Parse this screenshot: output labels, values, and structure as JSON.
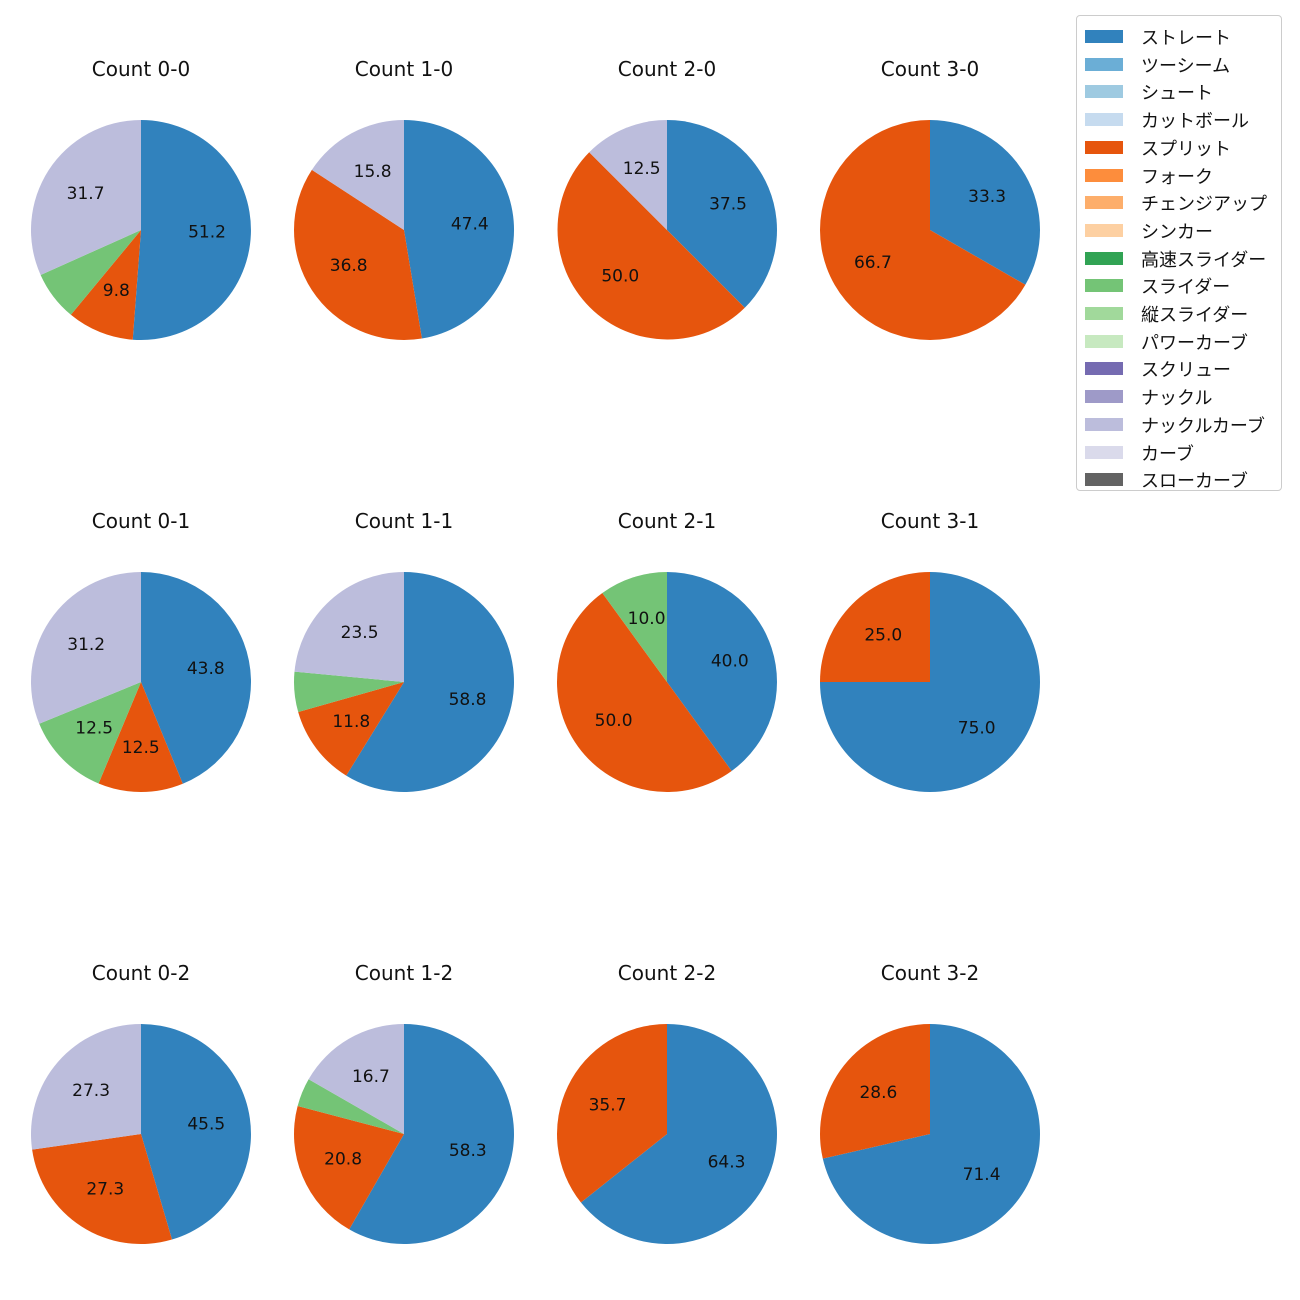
{
  "chart_data": {
    "type": "pie",
    "layout": "grid",
    "categories": [
      "ストレート",
      "ツーシーム",
      "シュート",
      "カットボール",
      "スプリット",
      "フォーク",
      "チェンジアップ",
      "シンカー",
      "高速スライダー",
      "スライダー",
      "縦スライダー",
      "パワーカーブ",
      "スクリュー",
      "ナックル",
      "ナックルカーブ",
      "カーブ",
      "スローカーブ"
    ],
    "colors": [
      "#3182bd",
      "#6baed6",
      "#9ecae1",
      "#c6dbef",
      "#e6550d",
      "#fd8d3c",
      "#fdae6b",
      "#fdd0a2",
      "#31a354",
      "#74c476",
      "#a1d99b",
      "#c7e9c0",
      "#756bb1",
      "#9e9ac8",
      "#bcbddc",
      "#dadaeb",
      "#636363"
    ],
    "legend_position": "top-right",
    "start_angle": "12 o'clock, clockwise",
    "charts": [
      {
        "title": "Count 0-0",
        "slices": [
          {
            "category": "ストレート",
            "value": 51.2,
            "label": "51.2"
          },
          {
            "category": "スプリット",
            "value": 9.8,
            "label": "9.8"
          },
          {
            "category": "スライダー",
            "value": 7.3,
            "label": ""
          },
          {
            "category": "ナックルカーブ",
            "value": 31.7,
            "label": "31.7"
          }
        ]
      },
      {
        "title": "Count 1-0",
        "slices": [
          {
            "category": "ストレート",
            "value": 47.4,
            "label": "47.4"
          },
          {
            "category": "スプリット",
            "value": 36.8,
            "label": "36.8"
          },
          {
            "category": "ナックルカーブ",
            "value": 15.8,
            "label": "15.8"
          }
        ]
      },
      {
        "title": "Count 2-0",
        "slices": [
          {
            "category": "ストレート",
            "value": 37.5,
            "label": "37.5"
          },
          {
            "category": "スプリット",
            "value": 50.0,
            "label": "50.0"
          },
          {
            "category": "ナックルカーブ",
            "value": 12.5,
            "label": "12.5"
          }
        ]
      },
      {
        "title": "Count 3-0",
        "slices": [
          {
            "category": "ストレート",
            "value": 33.3,
            "label": "33.3"
          },
          {
            "category": "スプリット",
            "value": 66.7,
            "label": "66.7"
          }
        ]
      },
      {
        "title": "Count 0-1",
        "slices": [
          {
            "category": "ストレート",
            "value": 43.8,
            "label": "43.8"
          },
          {
            "category": "スプリット",
            "value": 12.5,
            "label": "12.5"
          },
          {
            "category": "スライダー",
            "value": 12.5,
            "label": "12.5"
          },
          {
            "category": "ナックルカーブ",
            "value": 31.2,
            "label": "31.2"
          }
        ]
      },
      {
        "title": "Count 1-1",
        "slices": [
          {
            "category": "ストレート",
            "value": 58.8,
            "label": "58.8"
          },
          {
            "category": "スプリット",
            "value": 11.8,
            "label": "11.8"
          },
          {
            "category": "スライダー",
            "value": 5.9,
            "label": ""
          },
          {
            "category": "ナックルカーブ",
            "value": 23.5,
            "label": "23.5"
          }
        ]
      },
      {
        "title": "Count 2-1",
        "slices": [
          {
            "category": "ストレート",
            "value": 40.0,
            "label": "40.0"
          },
          {
            "category": "スプリット",
            "value": 50.0,
            "label": "50.0"
          },
          {
            "category": "スライダー",
            "value": 10.0,
            "label": "10.0"
          }
        ]
      },
      {
        "title": "Count 3-1",
        "slices": [
          {
            "category": "ストレート",
            "value": 75.0,
            "label": "75.0"
          },
          {
            "category": "スプリット",
            "value": 25.0,
            "label": "25.0"
          }
        ]
      },
      {
        "title": "Count 0-2",
        "slices": [
          {
            "category": "ストレート",
            "value": 45.5,
            "label": "45.5"
          },
          {
            "category": "スプリット",
            "value": 27.3,
            "label": "27.3"
          },
          {
            "category": "ナックルカーブ",
            "value": 27.3,
            "label": "27.3"
          }
        ]
      },
      {
        "title": "Count 1-2",
        "slices": [
          {
            "category": "ストレート",
            "value": 58.3,
            "label": "58.3"
          },
          {
            "category": "スプリット",
            "value": 20.8,
            "label": "20.8"
          },
          {
            "category": "スライダー",
            "value": 4.2,
            "label": ""
          },
          {
            "category": "ナックルカーブ",
            "value": 16.7,
            "label": "16.7"
          }
        ]
      },
      {
        "title": "Count 2-2",
        "slices": [
          {
            "category": "ストレート",
            "value": 64.3,
            "label": "64.3"
          },
          {
            "category": "スプリット",
            "value": 35.7,
            "label": "35.7"
          }
        ]
      },
      {
        "title": "Count 3-2",
        "slices": [
          {
            "category": "ストレート",
            "value": 71.4,
            "label": "71.4"
          },
          {
            "category": "スプリット",
            "value": 28.6,
            "label": "28.6"
          }
        ]
      }
    ]
  }
}
